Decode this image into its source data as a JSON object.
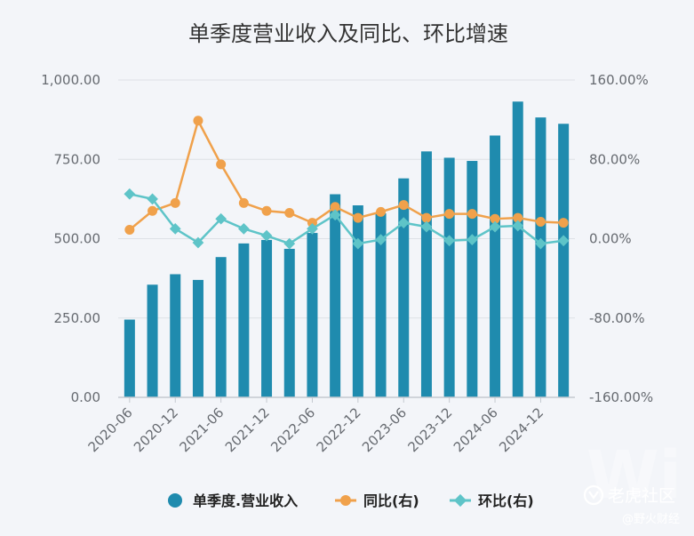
{
  "chart_data": {
    "type": "bar",
    "title": "单季度营业收入及同比、环比增速",
    "x": [
      "2020-06",
      "2020-09",
      "2020-12",
      "2021-03",
      "2021-06",
      "2021-09",
      "2021-12",
      "2022-03",
      "2022-06",
      "2022-09",
      "2022-12",
      "2023-03",
      "2023-06",
      "2023-09",
      "2023-12",
      "2024-03",
      "2024-06",
      "2024-09",
      "2024-12",
      "2025-03"
    ],
    "x_tick_labels": [
      "2020-06",
      "2020-12",
      "2021-06",
      "2021-12",
      "2022-06",
      "2022-12",
      "2023-06",
      "2023-12",
      "2024-06",
      "2024-12"
    ],
    "y_left": {
      "lim": [
        0,
        1000
      ],
      "ticks": [
        "0.00",
        "250.00",
        "500.00",
        "750.00",
        "1,000.00"
      ]
    },
    "y_right": {
      "lim": [
        -160,
        160
      ],
      "ticks": [
        "-160.00%",
        "-80.00%",
        "0.00%",
        "80.00%",
        "160.00%"
      ]
    },
    "grid": true,
    "legend_position": "bottom",
    "series": [
      {
        "name": "单季度.营业收入",
        "type": "bar",
        "axis": "left",
        "color": "#1f8bae",
        "values": [
          245,
          355,
          388,
          370,
          442,
          485,
          496,
          468,
          518,
          640,
          605,
          580,
          690,
          775,
          755,
          745,
          825,
          932,
          882,
          862
        ]
      },
      {
        "name": "同比(右)",
        "type": "line",
        "axis": "right",
        "color": "#f0a14b",
        "values": [
          9,
          28,
          36,
          119,
          75,
          36,
          28,
          26,
          16,
          32,
          21,
          27,
          34,
          21,
          25,
          25,
          20,
          21,
          17,
          16
        ]
      },
      {
        "name": "环比(右)",
        "type": "line",
        "axis": "right",
        "color": "#5ec4c8",
        "values": [
          45,
          40,
          10,
          -4,
          20,
          10,
          3,
          -5,
          10,
          24,
          -5,
          -1,
          16,
          12,
          -2,
          -1,
          12,
          13,
          -5,
          -2
        ]
      }
    ]
  },
  "watermark": {
    "brand": "老虎社区",
    "sub": "@野火财经"
  },
  "colors": {
    "grid": "#dde1e6",
    "axis": "#c4c9d0",
    "tick_text": "#666a70"
  },
  "icons": {
    "watermark_logo": "tiger-logo-icon"
  }
}
